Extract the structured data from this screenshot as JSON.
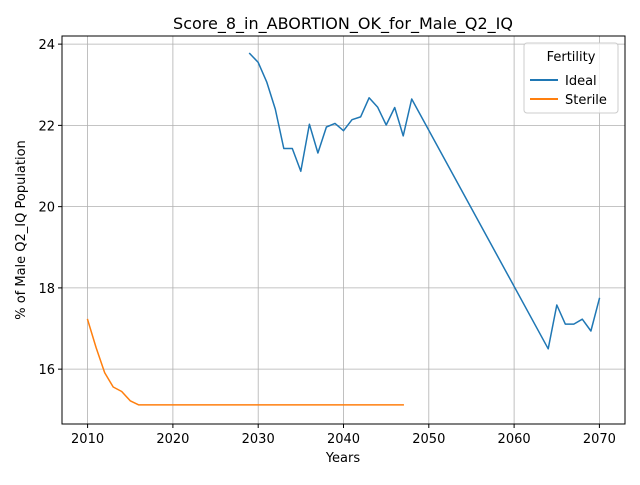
{
  "chart_data": {
    "type": "line",
    "title": "Score_8_in_ABORTION_OK_for_Male_Q2_IQ",
    "xlabel": "Years",
    "ylabel": "% of Male Q2_IQ Population",
    "xlim": [
      2007.0,
      2073.0
    ],
    "ylim": [
      14.65,
      24.2
    ],
    "x_ticks": [
      2010,
      2020,
      2030,
      2040,
      2050,
      2060,
      2070
    ],
    "y_ticks": [
      16,
      18,
      20,
      22,
      24
    ],
    "grid": true,
    "legend": {
      "title": "Fertility",
      "placement": "top-right"
    },
    "series": [
      {
        "name": "Ideal",
        "color": "#1f77b4",
        "x": [
          2029,
          2030,
          2031,
          2032,
          2033,
          2034,
          2035,
          2036,
          2037,
          2038,
          2039,
          2040,
          2041,
          2042,
          2043,
          2044,
          2045,
          2046,
          2047,
          2048,
          2064,
          2065,
          2066,
          2067,
          2068,
          2069,
          2070
        ],
        "y": [
          23.77,
          23.55,
          23.07,
          22.4,
          21.43,
          21.43,
          20.87,
          22.03,
          21.32,
          21.96,
          22.05,
          21.87,
          22.14,
          22.21,
          22.68,
          22.45,
          22.01,
          22.44,
          21.74,
          22.65,
          16.5,
          17.58,
          17.11,
          17.11,
          17.23,
          16.94,
          17.74
        ]
      },
      {
        "name": "Sterile",
        "color": "#ff7f0e",
        "x": [
          2010,
          2011,
          2012,
          2013,
          2014,
          2015,
          2016,
          2017,
          2020,
          2025,
          2030,
          2035,
          2040,
          2045,
          2047
        ],
        "y": [
          17.22,
          16.53,
          15.91,
          15.56,
          15.45,
          15.22,
          15.12,
          15.12,
          15.12,
          15.12,
          15.12,
          15.12,
          15.12,
          15.12,
          15.12
        ]
      }
    ]
  }
}
